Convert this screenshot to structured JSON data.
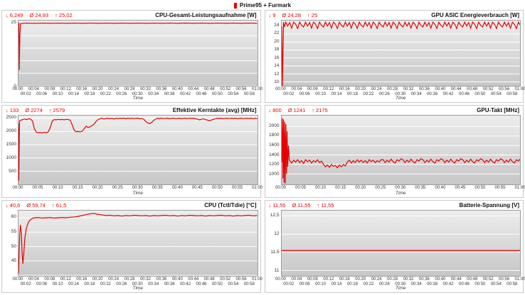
{
  "legend": {
    "label": "Prime95 + Furmark"
  },
  "colors": {
    "line": "#e60000",
    "grid": "#ffffff"
  },
  "icons": {
    "min": "↓",
    "avg": "Ø",
    "max": "↑"
  },
  "x_ticks_2min": [
    "00:00",
    "00:02",
    "00:04",
    "00:06",
    "00:08",
    "00:10",
    "00:12",
    "00:14",
    "00:16",
    "00:18",
    "00:20",
    "00:22",
    "00:24",
    "00:26",
    "00:28",
    "00:30",
    "00:32",
    "00:34",
    "00:36",
    "00:38",
    "00:40",
    "00:42",
    "00:44",
    "00:46",
    "00:48",
    "00:50",
    "00:52",
    "00:54",
    "00:56",
    "00:58",
    "01:00"
  ],
  "x_ticks_5min": [
    "00:00",
    "00:05",
    "00:10",
    "00:15",
    "00:20",
    "00:25",
    "00:30",
    "00:35",
    "00:40",
    "00:45",
    "00:50",
    "00:55",
    "01:00"
  ],
  "chart_data": [
    {
      "type": "line",
      "title": "CPU-Gesamt-Leistungsaufnahme [W]",
      "stats": {
        "min": "6,249",
        "avg": "24,93",
        "max": "25,02"
      },
      "xlabel": "Time",
      "xlim": [
        0,
        60
      ],
      "ylim": [
        0,
        26
      ],
      "yticks": [
        {
          "v": 25,
          "label": "25"
        },
        {
          "v": 20,
          "label": ""
        },
        {
          "v": 15,
          "label": ""
        },
        {
          "v": 10,
          "label": ""
        },
        {
          "v": 5,
          "label": ""
        },
        {
          "v": 0,
          "label": "0"
        }
      ],
      "xticks_ref": "x_ticks_2min",
      "x_stagger": true,
      "points": [
        [
          0,
          24.9
        ],
        [
          0.1,
          25
        ],
        [
          0.2,
          6.25
        ],
        [
          0.35,
          20
        ],
        [
          0.5,
          24.8
        ],
        [
          1,
          24.9
        ],
        [
          2,
          25
        ],
        [
          4,
          24.9
        ],
        [
          6,
          25
        ],
        [
          8,
          24.9
        ],
        [
          10,
          25
        ],
        [
          12,
          24.9
        ],
        [
          14,
          25
        ],
        [
          16,
          24.9
        ],
        [
          18,
          25
        ],
        [
          20,
          24.9
        ],
        [
          22,
          25
        ],
        [
          24,
          24.9
        ],
        [
          26,
          25
        ],
        [
          28,
          24.9
        ],
        [
          30,
          25
        ],
        [
          32,
          24.9
        ],
        [
          34,
          25
        ],
        [
          36,
          24.9
        ],
        [
          38,
          25
        ],
        [
          40,
          24.9
        ],
        [
          42,
          25
        ],
        [
          44,
          24.9
        ],
        [
          46,
          25
        ],
        [
          48,
          24.9
        ],
        [
          50,
          25
        ],
        [
          52,
          24.9
        ],
        [
          54,
          25
        ],
        [
          56,
          24.9
        ],
        [
          58,
          25
        ],
        [
          60,
          24.9
        ]
      ]
    },
    {
      "type": "line",
      "title": "GPU ASIC Energieverbrauch [W]",
      "stats": {
        "min": "9",
        "avg": "24,28",
        "max": "25"
      },
      "xlabel": "Time",
      "xlim": [
        0,
        60
      ],
      "ylim": [
        9,
        25.4
      ],
      "yticks": [
        {
          "v": 24,
          "label": "24"
        },
        {
          "v": 22,
          "label": "22"
        },
        {
          "v": 20,
          "label": "20"
        },
        {
          "v": 18,
          "label": "18"
        },
        {
          "v": 16,
          "label": "16"
        },
        {
          "v": 14,
          "label": "14"
        },
        {
          "v": 12,
          "label": "12"
        },
        {
          "v": 10,
          "label": "10"
        }
      ],
      "xticks_ref": "x_ticks_2min",
      "x_stagger": true,
      "points": [
        [
          0,
          24
        ],
        [
          0.2,
          9
        ],
        [
          0.45,
          25
        ],
        [
          0.7,
          23.8
        ]
      ],
      "sampled": {
        "t0": 1,
        "dt": 0.5,
        "values": [
          25,
          24,
          24.9,
          23.5,
          25,
          24.5,
          23.4,
          25,
          24.2,
          23.8,
          25,
          24,
          24.9,
          23.5,
          25,
          24.5,
          23.4,
          25,
          24.2,
          23.8,
          25,
          24,
          24.9,
          23.5,
          25,
          24.5,
          23.4,
          25,
          24.2,
          23.8,
          25,
          24,
          24.9,
          23.5,
          25,
          24.5,
          23.4,
          25,
          24.2,
          23.8,
          25,
          24,
          24.9,
          23.5,
          25,
          24.5,
          23.4,
          25,
          24.2,
          23.8,
          25,
          24,
          24.9,
          23.5,
          25,
          24.5,
          23.4,
          25,
          24.2,
          23.8,
          25,
          24,
          24.9,
          23.5,
          25,
          24.5,
          23.4,
          25,
          24.2,
          23.8,
          25,
          24,
          24.9,
          23.5,
          25,
          24.5,
          23.4,
          25,
          24.2,
          23.8,
          25,
          24,
          24.9,
          23.5,
          25,
          24.5,
          23.4,
          25,
          24.2,
          23.8,
          25,
          24,
          24.9,
          23.5,
          25,
          24.5,
          23.4,
          25,
          24.2,
          23.8,
          25,
          24,
          24.9,
          23.5,
          25,
          24.5,
          23.4,
          25,
          24.2,
          23.8,
          25,
          24,
          24.9,
          23.5,
          25,
          24.5,
          23.4,
          25,
          24.2
        ]
      }
    },
    {
      "type": "line",
      "title": "Effektive Kerntakte (avg) [MHz]",
      "stats": {
        "min": "133",
        "avg": "2274",
        "max": "2579"
      },
      "xlabel": "Time",
      "xlim": [
        0,
        60
      ],
      "ylim": [
        0,
        2600
      ],
      "yticks": [
        {
          "v": 2500,
          "label": "2500"
        },
        {
          "v": 2000,
          "label": "2000"
        },
        {
          "v": 1500,
          "label": "1500"
        },
        {
          "v": 1000,
          "label": "1000"
        },
        {
          "v": 500,
          "label": "500"
        }
      ],
      "xticks_ref": "x_ticks_5min",
      "x_stagger": false,
      "points": [
        [
          0,
          2300
        ],
        [
          0.08,
          133
        ],
        [
          0.25,
          2400
        ],
        [
          1,
          2450
        ],
        [
          1.5,
          2470
        ],
        [
          2,
          2450
        ],
        [
          2.5,
          2480
        ],
        [
          3,
          2470
        ],
        [
          3.5,
          2400
        ],
        [
          4,
          2100
        ],
        [
          4.5,
          1970
        ],
        [
          5,
          1950
        ],
        [
          5.5,
          1960
        ],
        [
          6,
          1945
        ],
        [
          6.5,
          1970
        ],
        [
          7,
          1955
        ],
        [
          7.5,
          1990
        ],
        [
          8,
          2150
        ],
        [
          8.5,
          2400
        ],
        [
          9,
          2450
        ],
        [
          9.5,
          2440
        ],
        [
          10,
          2460
        ],
        [
          10.5,
          2445
        ],
        [
          11,
          2455
        ],
        [
          11.5,
          2440
        ],
        [
          12,
          2460
        ],
        [
          12.5,
          2450
        ],
        [
          13,
          2430
        ],
        [
          13.5,
          2250
        ],
        [
          14,
          2050
        ],
        [
          14.5,
          1990
        ],
        [
          15,
          2000
        ],
        [
          15.5,
          1985
        ],
        [
          16,
          2010
        ],
        [
          16.5,
          2100
        ],
        [
          17,
          2200
        ],
        [
          17.5,
          2150
        ],
        [
          18,
          2180
        ],
        [
          18.5,
          2220
        ],
        [
          19,
          2280
        ],
        [
          19.5,
          2380
        ],
        [
          20,
          2450
        ]
      ],
      "sampled": {
        "t0": 20.5,
        "dt": 0.5,
        "values": [
          2480,
          2500,
          2470,
          2490,
          2500,
          2480,
          2495,
          2470,
          2500,
          2485,
          2500,
          2490,
          2500,
          2480,
          2500,
          2490,
          2500,
          2485,
          2495,
          2500,
          2480,
          2490,
          2460,
          2380,
          2320,
          2300,
          2340,
          2420,
          2470,
          2500,
          2490,
          2500,
          2485,
          2495,
          2500,
          2480,
          2495,
          2500,
          2485,
          2490,
          2500,
          2480,
          2495,
          2500,
          2485,
          2500,
          2490,
          2500,
          2480,
          2470,
          2440,
          2460,
          2480,
          2450,
          2430,
          2400,
          2430,
          2460,
          2480,
          2500,
          2490,
          2500,
          2480,
          2495,
          2500,
          2485,
          2500,
          2490,
          2500,
          2480,
          2495,
          2500,
          2485,
          2495,
          2500,
          2490,
          2500,
          2485,
          2495,
          2480
        ]
      }
    },
    {
      "type": "line",
      "title": "GPU-Takt [MHz]",
      "stats": {
        "min": "800",
        "avg": "1241",
        "max": "2175"
      },
      "xlabel": "Time",
      "xlim": [
        0,
        60
      ],
      "ylim": [
        780,
        2230
      ],
      "yticks": [
        {
          "v": 2000,
          "label": "2000"
        },
        {
          "v": 1800,
          "label": "1800"
        },
        {
          "v": 1600,
          "label": "1600"
        },
        {
          "v": 1400,
          "label": "1400"
        },
        {
          "v": 1200,
          "label": "1200"
        },
        {
          "v": 1000,
          "label": "1000"
        }
      ],
      "xticks_ref": "x_ticks_5min",
      "x_stagger": false,
      "points": [
        [
          0,
          1250
        ],
        [
          0.15,
          2175
        ],
        [
          0.3,
          900
        ],
        [
          0.45,
          2150
        ],
        [
          0.6,
          820
        ],
        [
          0.75,
          2100
        ],
        [
          0.9,
          800
        ],
        [
          1.05,
          2050
        ],
        [
          1.2,
          1000
        ],
        [
          1.35,
          1900
        ],
        [
          1.5,
          1150
        ],
        [
          1.7,
          1600
        ],
        [
          1.9,
          1300
        ]
      ],
      "sampled": {
        "t0": 2,
        "dt": 0.5,
        "values": [
          1280,
          1230,
          1290,
          1250,
          1300,
          1240,
          1280,
          1220,
          1300,
          1260,
          1290,
          1230,
          1280,
          1250,
          1300,
          1240,
          1270,
          1200,
          1150,
          1190,
          1140,
          1200,
          1160,
          1180,
          1130,
          1190,
          1150,
          1200,
          1170,
          1250,
          1290,
          1230,
          1280,
          1240,
          1300,
          1250,
          1290,
          1240,
          1280,
          1230,
          1300,
          1260,
          1290,
          1240,
          1280,
          1250,
          1300,
          1300,
          1240,
          1290,
          1250,
          1310,
          1260,
          1230,
          1300,
          1270,
          1320,
          1300,
          1240,
          1290,
          1250,
          1310,
          1260,
          1230,
          1300,
          1270,
          1320,
          1300,
          1240,
          1290,
          1250,
          1310,
          1260,
          1230,
          1300,
          1270,
          1320,
          1300,
          1240,
          1290,
          1250,
          1310,
          1260,
          1230,
          1300,
          1270,
          1320,
          1300,
          1240,
          1290,
          1250,
          1310,
          1260,
          1230,
          1300,
          1270,
          1320,
          1300,
          1240,
          1290,
          1250,
          1310,
          1260,
          1230,
          1300,
          1270,
          1320,
          1300,
          1240,
          1290,
          1250,
          1310,
          1260,
          1230,
          1300,
          1270,
          1320
        ]
      }
    },
    {
      "type": "line",
      "title": "CPU (Tctl/Tdie) [°C]",
      "stats": {
        "min": "40,6",
        "avg": "59,74",
        "max": "61,5"
      },
      "xlabel": "Time",
      "xlim": [
        0,
        60
      ],
      "ylim": [
        39.8,
        62.5
      ],
      "yticks": [
        {
          "v": 60,
          "label": "60"
        },
        {
          "v": 55,
          "label": "55"
        },
        {
          "v": 50,
          "label": "50"
        },
        {
          "v": 45,
          "label": "45"
        },
        {
          "v": 40,
          "label": ""
        }
      ],
      "xticks_ref": "x_ticks_2min",
      "x_stagger": true,
      "points": [
        [
          0,
          40.6
        ],
        [
          0.3,
          54
        ],
        [
          0.5,
          57.5
        ],
        [
          0.7,
          55
        ],
        [
          0.9,
          48
        ],
        [
          1.1,
          44
        ],
        [
          1.3,
          47
        ],
        [
          1.6,
          53
        ],
        [
          2,
          56.5
        ],
        [
          2.5,
          58.5
        ],
        [
          3,
          59.3
        ],
        [
          3.5,
          59.8
        ],
        [
          4,
          60
        ],
        [
          5,
          60.1
        ],
        [
          6,
          59.9
        ],
        [
          7,
          60
        ],
        [
          8,
          60.1
        ],
        [
          9,
          59.9
        ],
        [
          10,
          60
        ],
        [
          11,
          60.1
        ],
        [
          12,
          60
        ],
        [
          13,
          60.2
        ],
        [
          14,
          60.3
        ],
        [
          15,
          60.5
        ],
        [
          16,
          60.8
        ],
        [
          17,
          61.1
        ],
        [
          18,
          61.4
        ],
        [
          19,
          61.5
        ],
        [
          20,
          61.2
        ],
        [
          21,
          61
        ],
        [
          22,
          60.8
        ],
        [
          23,
          60.9
        ],
        [
          24,
          60.7
        ],
        [
          25,
          60.8
        ],
        [
          26,
          60.6
        ],
        [
          27,
          60.8
        ],
        [
          28,
          60.7
        ],
        [
          29,
          60.9
        ],
        [
          30,
          60.8
        ],
        [
          31,
          60.7
        ],
        [
          32,
          60.8
        ],
        [
          33,
          60.6
        ],
        [
          34,
          60.8
        ],
        [
          35,
          60.7
        ],
        [
          36,
          60.8
        ],
        [
          37,
          60.9
        ],
        [
          38,
          60.7
        ],
        [
          39,
          60.8
        ],
        [
          40,
          60.6
        ],
        [
          41,
          60.8
        ],
        [
          42,
          60.7
        ],
        [
          43,
          60.9
        ],
        [
          44,
          60.8
        ],
        [
          45,
          60.7
        ],
        [
          46,
          60.8
        ],
        [
          47,
          60.6
        ],
        [
          48,
          60.8
        ],
        [
          49,
          60.7
        ],
        [
          50,
          60.8
        ],
        [
          51,
          60.9
        ],
        [
          52,
          60.7
        ],
        [
          53,
          60.8
        ],
        [
          54,
          60.6
        ],
        [
          55,
          60.8
        ],
        [
          56,
          60.7
        ],
        [
          57,
          60.8
        ],
        [
          58,
          60.9
        ],
        [
          59,
          60.7
        ],
        [
          60,
          60.8
        ]
      ]
    },
    {
      "type": "line",
      "title": "Batterie-Spannung [V]",
      "stats": {
        "min": "11,55",
        "avg": "11,55",
        "max": "11,55"
      },
      "xlabel": "Time",
      "xlim": [
        0,
        60
      ],
      "ylim": [
        10.85,
        12.65
      ],
      "yticks": [
        {
          "v": 12.5,
          "label": "12,5"
        },
        {
          "v": 12,
          "label": "12"
        },
        {
          "v": 11.5,
          "label": "11,5"
        },
        {
          "v": 11,
          "label": "11"
        }
      ],
      "xticks_ref": "x_ticks_2min",
      "x_stagger": true,
      "points": [
        [
          0,
          11.55
        ],
        [
          60,
          11.55
        ]
      ]
    }
  ]
}
